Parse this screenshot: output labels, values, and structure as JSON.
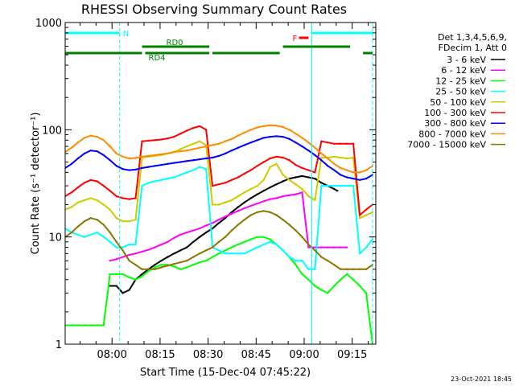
{
  "chart_data": {
    "type": "line",
    "title": "RHESSI Observing Summary Count Rates",
    "xlabel": "Start Time (15-Dec-04 07:45:22)",
    "ylabel": "Count Rate (s⁻¹ detector⁻¹)",
    "yscale": "log",
    "ylim": [
      1,
      1000
    ],
    "xlim_minutes": [
      0,
      97
    ],
    "x_ticks": [
      "08:00",
      "08:15",
      "08:30",
      "08:45",
      "09:00",
      "09:15"
    ],
    "y_ticks": [
      "1",
      "10",
      "100",
      "1000"
    ],
    "legend_header": [
      "Det 1,3,4,5,6,9,",
      "FDecim 1, Att 0"
    ],
    "legend_position": "right",
    "grid": false,
    "series": [
      {
        "name": "3 - 6 keV",
        "color": "#000000",
        "x": [
          14,
          16,
          18,
          20,
          22,
          24,
          26,
          28,
          30,
          32,
          34,
          36,
          38,
          40,
          42,
          44,
          46,
          48,
          50,
          52,
          54,
          56,
          58,
          60,
          62,
          64,
          66,
          68,
          70,
          72,
          74,
          76,
          78,
          80,
          82,
          84,
          85
        ],
        "values": [
          3.5,
          3.5,
          3.0,
          3.2,
          4.0,
          4.5,
          5.0,
          5.5,
          6.0,
          6.5,
          7.0,
          7.5,
          8.0,
          9.0,
          10.0,
          11.0,
          12.0,
          13.5,
          15.0,
          17.0,
          19.0,
          21.0,
          23.0,
          25.0,
          27.0,
          29.0,
          31.0,
          33.0,
          35.0,
          36.0,
          37.0,
          36.0,
          35.0,
          32.0,
          30.0,
          28.0,
          27.0
        ]
      },
      {
        "name": "6 - 12 keV",
        "color": "#ff00ff",
        "x": [
          14,
          16,
          18,
          20,
          22,
          24,
          26,
          28,
          30,
          32,
          34,
          36,
          38,
          40,
          42,
          44,
          46,
          48,
          50,
          52,
          54,
          56,
          58,
          60,
          62,
          64,
          66,
          68,
          70,
          72,
          74,
          76,
          78,
          80,
          82,
          84,
          86,
          88
        ],
        "values": [
          6.0,
          6.2,
          6.5,
          6.8,
          7.0,
          7.3,
          7.6,
          8.0,
          8.5,
          9.0,
          9.8,
          10.5,
          11.0,
          11.5,
          12.0,
          12.8,
          13.5,
          14.5,
          15.5,
          16.5,
          17.5,
          18.5,
          19.5,
          20.5,
          21.5,
          22.5,
          23.0,
          24.0,
          24.5,
          25.0,
          26.0,
          8.0,
          8.0,
          8.0,
          8.0,
          8.0,
          8.0,
          8.0
        ]
      },
      {
        "name": "12 - 25 keV",
        "color": "#00ff00",
        "x": [
          0,
          2,
          4,
          6,
          8,
          10,
          12,
          14,
          16,
          18,
          20,
          22,
          24,
          26,
          28,
          30,
          32,
          34,
          36,
          38,
          40,
          42,
          44,
          46,
          48,
          50,
          52,
          54,
          56,
          58,
          60,
          62,
          64,
          66,
          68,
          70,
          72,
          74,
          76,
          78,
          80,
          82,
          84,
          86,
          88,
          90,
          92,
          94,
          96
        ],
        "values": [
          1.5,
          1.5,
          1.5,
          1.5,
          1.5,
          1.5,
          1.5,
          4.5,
          4.5,
          4.5,
          4.2,
          4.0,
          4.3,
          4.8,
          5.2,
          5.5,
          5.5,
          5.3,
          5.0,
          5.2,
          5.5,
          5.8,
          6.0,
          6.5,
          7.0,
          7.5,
          8.0,
          8.5,
          9.0,
          9.5,
          10.0,
          10.0,
          9.5,
          8.5,
          7.5,
          6.5,
          5.5,
          4.5,
          4.0,
          3.5,
          3.2,
          3.0,
          3.5,
          4.0,
          4.5,
          4.0,
          3.5,
          3.0,
          1.0
        ]
      },
      {
        "name": "25 - 50 keV",
        "color": "#00ffff",
        "x": [
          0,
          2,
          4,
          6,
          8,
          10,
          12,
          14,
          16,
          18,
          20,
          22,
          24,
          26,
          28,
          30,
          32,
          34,
          36,
          38,
          40,
          42,
          44,
          46,
          48,
          50,
          52,
          54,
          56,
          58,
          60,
          62,
          64,
          66,
          68,
          70,
          72,
          74,
          76,
          78,
          80,
          82,
          84,
          86,
          88,
          90,
          92,
          94,
          96
        ],
        "values": [
          12.0,
          11.0,
          10.5,
          10.0,
          10.5,
          11.0,
          10.0,
          9.0,
          8.0,
          8.0,
          8.5,
          8.5,
          30.0,
          32.0,
          33.0,
          34.0,
          35.0,
          36.0,
          38.0,
          40.0,
          42.0,
          45.0,
          43.0,
          8.0,
          7.5,
          7.0,
          7.0,
          7.0,
          7.0,
          7.5,
          8.0,
          8.5,
          9.0,
          8.5,
          7.5,
          6.5,
          6.0,
          6.0,
          5.0,
          5.0,
          30.0,
          30.0,
          30.0,
          30.0,
          30.0,
          30.0,
          7.0,
          8.0,
          9.5
        ]
      },
      {
        "name": "50 - 100 keV",
        "color": "#cccc00",
        "x": [
          0,
          2,
          4,
          6,
          8,
          10,
          12,
          14,
          16,
          18,
          20,
          22,
          24,
          26,
          28,
          30,
          32,
          34,
          36,
          38,
          40,
          42,
          44,
          46,
          48,
          50,
          52,
          54,
          56,
          58,
          60,
          62,
          64,
          66,
          68,
          70,
          72,
          74,
          76,
          78,
          80,
          82,
          84,
          86,
          88,
          90,
          92,
          94,
          96
        ],
        "values": [
          18.0,
          19.0,
          21.0,
          22.0,
          23.0,
          22.0,
          20.0,
          18.0,
          15.0,
          14.0,
          14.0,
          14.5,
          55.0,
          56.0,
          57.0,
          58.0,
          60.0,
          62.0,
          66.0,
          70.0,
          74.0,
          78.0,
          72.0,
          20.0,
          20.0,
          21.0,
          22.0,
          24.0,
          26.0,
          28.0,
          30.0,
          34.0,
          45.0,
          48.0,
          38.0,
          34.0,
          31.0,
          28.0,
          24.0,
          22.0,
          55.0,
          55.0,
          56.0,
          55.0,
          54.0,
          55.0,
          15.0,
          16.0,
          17.0
        ]
      },
      {
        "name": "100 - 300 keV",
        "color": "#ff0000",
        "x": [
          0,
          2,
          4,
          6,
          8,
          10,
          12,
          14,
          16,
          18,
          20,
          22,
          24,
          26,
          28,
          30,
          32,
          34,
          36,
          38,
          40,
          42,
          44,
          46,
          48,
          50,
          52,
          54,
          56,
          58,
          60,
          62,
          64,
          66,
          68,
          70,
          72,
          74,
          76,
          78,
          80,
          82,
          84,
          86,
          88,
          90,
          92,
          94,
          96
        ],
        "values": [
          24.0,
          26.0,
          29.0,
          32.0,
          34.0,
          33.0,
          30.0,
          27.0,
          24.0,
          23.0,
          22.5,
          23.0,
          78.0,
          79.0,
          80.0,
          81.0,
          83.0,
          86.0,
          92.0,
          98.0,
          104.0,
          108.0,
          100.0,
          30.0,
          31.0,
          32.0,
          34.0,
          36.0,
          39.0,
          42.0,
          46.0,
          50.0,
          54.0,
          56.0,
          55.0,
          52.0,
          47.0,
          44.0,
          42.0,
          40.0,
          78.0,
          76.0,
          74.0,
          74.0,
          74.0,
          74.0,
          16.0,
          18.0,
          20.0
        ]
      },
      {
        "name": "300 - 800 keV",
        "color": "#0000ff",
        "x": [
          0,
          2,
          4,
          6,
          8,
          10,
          12,
          14,
          16,
          18,
          20,
          22,
          24,
          26,
          28,
          30,
          32,
          34,
          36,
          38,
          40,
          42,
          44,
          46,
          48,
          50,
          52,
          54,
          56,
          58,
          60,
          62,
          64,
          66,
          68,
          70,
          72,
          74,
          76,
          78,
          80,
          82,
          84,
          86,
          88,
          90,
          92,
          94,
          96
        ],
        "values": [
          44.0,
          48.0,
          54.0,
          60.0,
          64.0,
          63.0,
          58.0,
          52.0,
          46.0,
          43.0,
          42.0,
          42.5,
          44.0,
          45.0,
          46.0,
          47.0,
          48.0,
          49.0,
          50.0,
          51.0,
          52.0,
          53.0,
          54.0,
          55.0,
          57.0,
          60.0,
          64.0,
          68.0,
          72.0,
          76.0,
          80.0,
          84.0,
          86.0,
          87.0,
          86.0,
          82.0,
          76.0,
          70.0,
          64.0,
          58.0,
          52.0,
          46.0,
          42.0,
          38.0,
          36.0,
          35.0,
          34.0,
          35.0,
          38.0
        ]
      },
      {
        "name": "800 - 7000 keV",
        "color": "#ff8c00",
        "x": [
          0,
          2,
          4,
          6,
          8,
          10,
          12,
          14,
          16,
          18,
          20,
          22,
          24,
          26,
          28,
          30,
          32,
          34,
          36,
          38,
          40,
          42,
          44,
          46,
          48,
          50,
          52,
          54,
          56,
          58,
          60,
          62,
          64,
          66,
          68,
          70,
          72,
          74,
          76,
          78,
          80,
          82,
          84,
          86,
          88,
          90,
          92,
          94,
          96
        ],
        "values": [
          62.0,
          68.0,
          76.0,
          84.0,
          88.0,
          86.0,
          80.0,
          70.0,
          60.0,
          56.0,
          54.0,
          54.5,
          56.0,
          57.0,
          58.0,
          59.0,
          60.0,
          62.0,
          63.0,
          64.0,
          66.0,
          68.0,
          70.0,
          72.0,
          74.0,
          78.0,
          82.0,
          88.0,
          94.0,
          100.0,
          105.0,
          108.0,
          110.0,
          109.0,
          106.0,
          100.0,
          92.0,
          84.0,
          76.0,
          68.0,
          60.0,
          54.0,
          48.0,
          44.0,
          42.0,
          40.0,
          40.0,
          42.0,
          46.0
        ]
      },
      {
        "name": "7000 - 15000 keV",
        "color": "#8b7500",
        "x": [
          0,
          2,
          4,
          6,
          8,
          10,
          12,
          14,
          16,
          18,
          20,
          22,
          24,
          26,
          28,
          30,
          32,
          34,
          36,
          38,
          40,
          42,
          44,
          46,
          48,
          50,
          52,
          54,
          56,
          58,
          60,
          62,
          64,
          66,
          68,
          70,
          72,
          74,
          76,
          78,
          80,
          82,
          84,
          86,
          88,
          90,
          92,
          94,
          96
        ],
        "values": [
          10.0,
          11.0,
          12.5,
          14.0,
          15.0,
          14.5,
          13.0,
          11.0,
          9.0,
          7.5,
          6.0,
          5.5,
          5.0,
          5.0,
          5.0,
          5.2,
          5.4,
          5.6,
          5.8,
          6.0,
          6.5,
          7.0,
          7.5,
          8.0,
          9.0,
          10.0,
          11.5,
          13.0,
          14.5,
          16.0,
          17.0,
          17.5,
          17.0,
          16.0,
          14.5,
          13.0,
          11.5,
          10.0,
          8.5,
          7.5,
          6.5,
          6.0,
          5.5,
          5.0,
          5.0,
          5.0,
          5.0,
          5.0,
          5.5
        ]
      }
    ],
    "status_bars": [
      {
        "label": "N",
        "color": "#00ffff",
        "segments": [
          [
            0,
            17
          ]
        ],
        "end_marks": true
      },
      {
        "label": "",
        "color": "#00ffff",
        "segments": [
          [
            77,
            96
          ]
        ]
      },
      {
        "label": "F",
        "color": "#ff0000",
        "segments": [
          [
            73,
            76
          ]
        ]
      },
      {
        "label": "RD0",
        "color": "#008000",
        "segments": [
          [
            24,
            45
          ],
          [
            68,
            89
          ]
        ]
      },
      {
        "label": "RD4",
        "color": "#008000",
        "segments": [
          [
            0,
            24
          ],
          [
            25,
            45
          ],
          [
            46,
            67
          ],
          [
            93,
            96
          ]
        ]
      }
    ],
    "vertical_markers": [
      {
        "x": 17,
        "color": "#00ffff",
        "style": "dashed"
      },
      {
        "x": 77,
        "color": "#00ffff",
        "style": "solid"
      },
      {
        "x": 96,
        "color": "#00ffff",
        "style": "dashed"
      }
    ]
  },
  "footer": {
    "timestamp": "23-Oct-2021 18:45"
  }
}
